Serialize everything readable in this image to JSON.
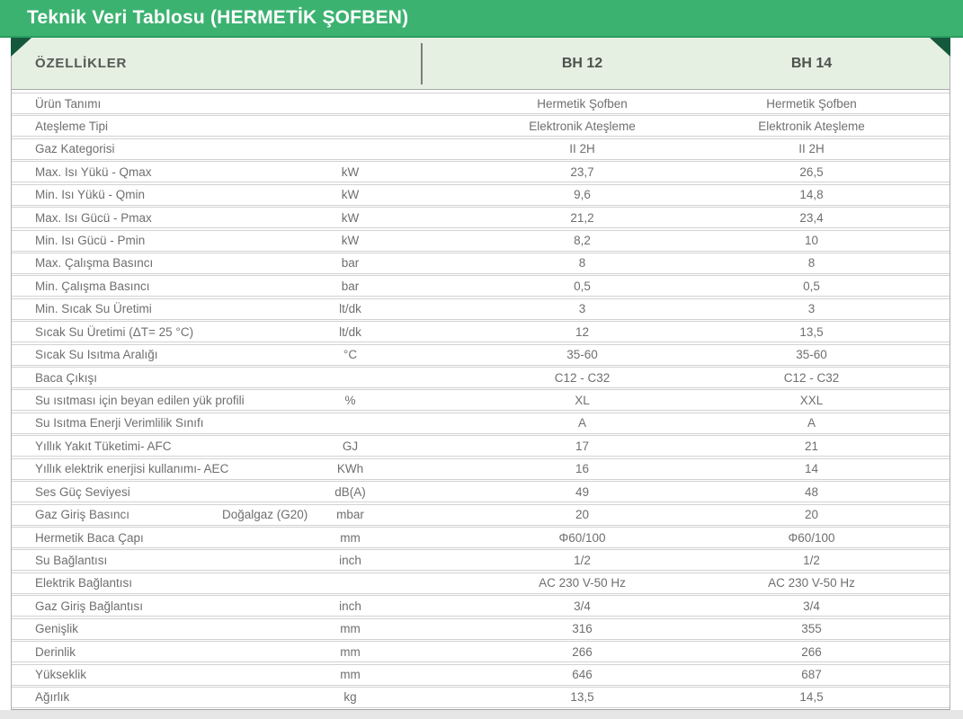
{
  "title_bar": {
    "title": "Teknik Veri Tablosu (HERMETİK ŞOFBEN)"
  },
  "table": {
    "header": {
      "features": "ÖZELLİKLER",
      "col_bh12": "BH 12",
      "col_bh14": "BH 14"
    },
    "rows": [
      {
        "label": "Ürün Tanımı",
        "sub": "",
        "unit": "",
        "bh12": "Hermetik Şofben",
        "bh14": "Hermetik Şofben"
      },
      {
        "label": "Ateşleme Tipi",
        "sub": "",
        "unit": "",
        "bh12": "Elektronik Ateşleme",
        "bh14": "Elektronik Ateşleme"
      },
      {
        "label": "Gaz Kategorisi",
        "sub": "",
        "unit": "",
        "bh12": "II 2H",
        "bh14": "II 2H"
      },
      {
        "label": "Max. Isı Yükü - Qmax",
        "sub": "",
        "unit": "kW",
        "bh12": "23,7",
        "bh14": "26,5"
      },
      {
        "label": "Min. Isı Yükü - Qmin",
        "sub": "",
        "unit": "kW",
        "bh12": "9,6",
        "bh14": "14,8"
      },
      {
        "label": "Max. Isı Gücü - Pmax",
        "sub": "",
        "unit": "kW",
        "bh12": "21,2",
        "bh14": "23,4"
      },
      {
        "label": "Min. Isı Gücü - Pmin",
        "sub": "",
        "unit": "kW",
        "bh12": "8,2",
        "bh14": "10"
      },
      {
        "label": "Max. Çalışma Basıncı",
        "sub": "",
        "unit": "bar",
        "bh12": "8",
        "bh14": "8"
      },
      {
        "label": "Min. Çalışma Basıncı",
        "sub": "",
        "unit": "bar",
        "bh12": "0,5",
        "bh14": "0,5"
      },
      {
        "label": "Min. Sıcak Su Üretimi",
        "sub": "",
        "unit": "lt/dk",
        "bh12": "3",
        "bh14": "3"
      },
      {
        "label": "Sıcak Su Üretimi (ΔT= 25 °C)",
        "sub": "",
        "unit": "lt/dk",
        "bh12": "12",
        "bh14": "13,5"
      },
      {
        "label": "Sıcak Su Isıtma Aralığı",
        "sub": "",
        "unit": "°C",
        "bh12": "35-60",
        "bh14": "35-60"
      },
      {
        "label": "Baca Çıkışı",
        "sub": "",
        "unit": "",
        "bh12": "C12 - C32",
        "bh14": "C12 - C32"
      },
      {
        "label": "Su ısıtması için beyan edilen yük profili",
        "sub": "",
        "unit": "%",
        "bh12": "XL",
        "bh14": "XXL"
      },
      {
        "label": "Su Isıtma Enerji Verimlilik Sınıfı",
        "sub": "",
        "unit": "",
        "bh12": "A",
        "bh14": "A"
      },
      {
        "label": "Yıllık Yakıt Tüketimi- AFC",
        "sub": "",
        "unit": "GJ",
        "bh12": "17",
        "bh14": "21"
      },
      {
        "label": "Yıllık elektrik enerjisi kullanımı- AEC",
        "sub": "",
        "unit": "KWh",
        "bh12": "16",
        "bh14": "14"
      },
      {
        "label": "Ses Güç Seviyesi",
        "sub": "",
        "unit": "dB(A)",
        "bh12": "49",
        "bh14": "48"
      },
      {
        "label": "Gaz Giriş Basıncı",
        "sub": "Doğalgaz (G20)",
        "unit": "mbar",
        "bh12": "20",
        "bh14": "20"
      },
      {
        "label": "Hermetik Baca Çapı",
        "sub": "",
        "unit": "mm",
        "bh12": "Φ60/100",
        "bh14": "Φ60/100"
      },
      {
        "label": "Su Bağlantısı",
        "sub": "",
        "unit": "inch",
        "bh12": "1/2",
        "bh14": "1/2"
      },
      {
        "label": "Elektrik Bağlantısı",
        "sub": "",
        "unit": "",
        "bh12": "AC 230 V-50 Hz",
        "bh14": "AC 230 V-50 Hz"
      },
      {
        "label": "Gaz Giriş Bağlantısı",
        "sub": "",
        "unit": "inch",
        "bh12": "3/4",
        "bh14": "3/4"
      },
      {
        "label": "Genişlik",
        "sub": "",
        "unit": "mm",
        "bh12": "316",
        "bh14": "355"
      },
      {
        "label": "Derinlik",
        "sub": "",
        "unit": "mm",
        "bh12": "266",
        "bh14": "266"
      },
      {
        "label": "Yükseklik",
        "sub": "",
        "unit": "mm",
        "bh12": "646",
        "bh14": "687"
      },
      {
        "label": "Ağırlık",
        "sub": "",
        "unit": "kg",
        "bh12": "13,5",
        "bh14": "14,5"
      }
    ]
  },
  "colors": {
    "accent_green": "#3cb271",
    "accent_green_dark": "#2b9c60",
    "fold_green": "#14593c",
    "band_green": "#e5efe2",
    "row_text": "#6f6f6f"
  }
}
